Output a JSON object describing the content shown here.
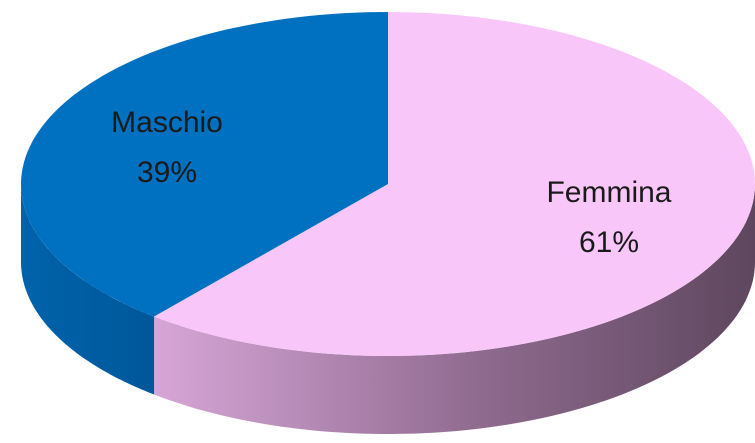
{
  "chart_data": {
    "type": "pie3d",
    "categories": [
      "Femmina",
      "Maschio"
    ],
    "values": [
      61,
      39
    ],
    "value_labels": [
      "61%",
      "39%"
    ],
    "colors": [
      "#f9c6f9",
      "#0070c0"
    ]
  }
}
